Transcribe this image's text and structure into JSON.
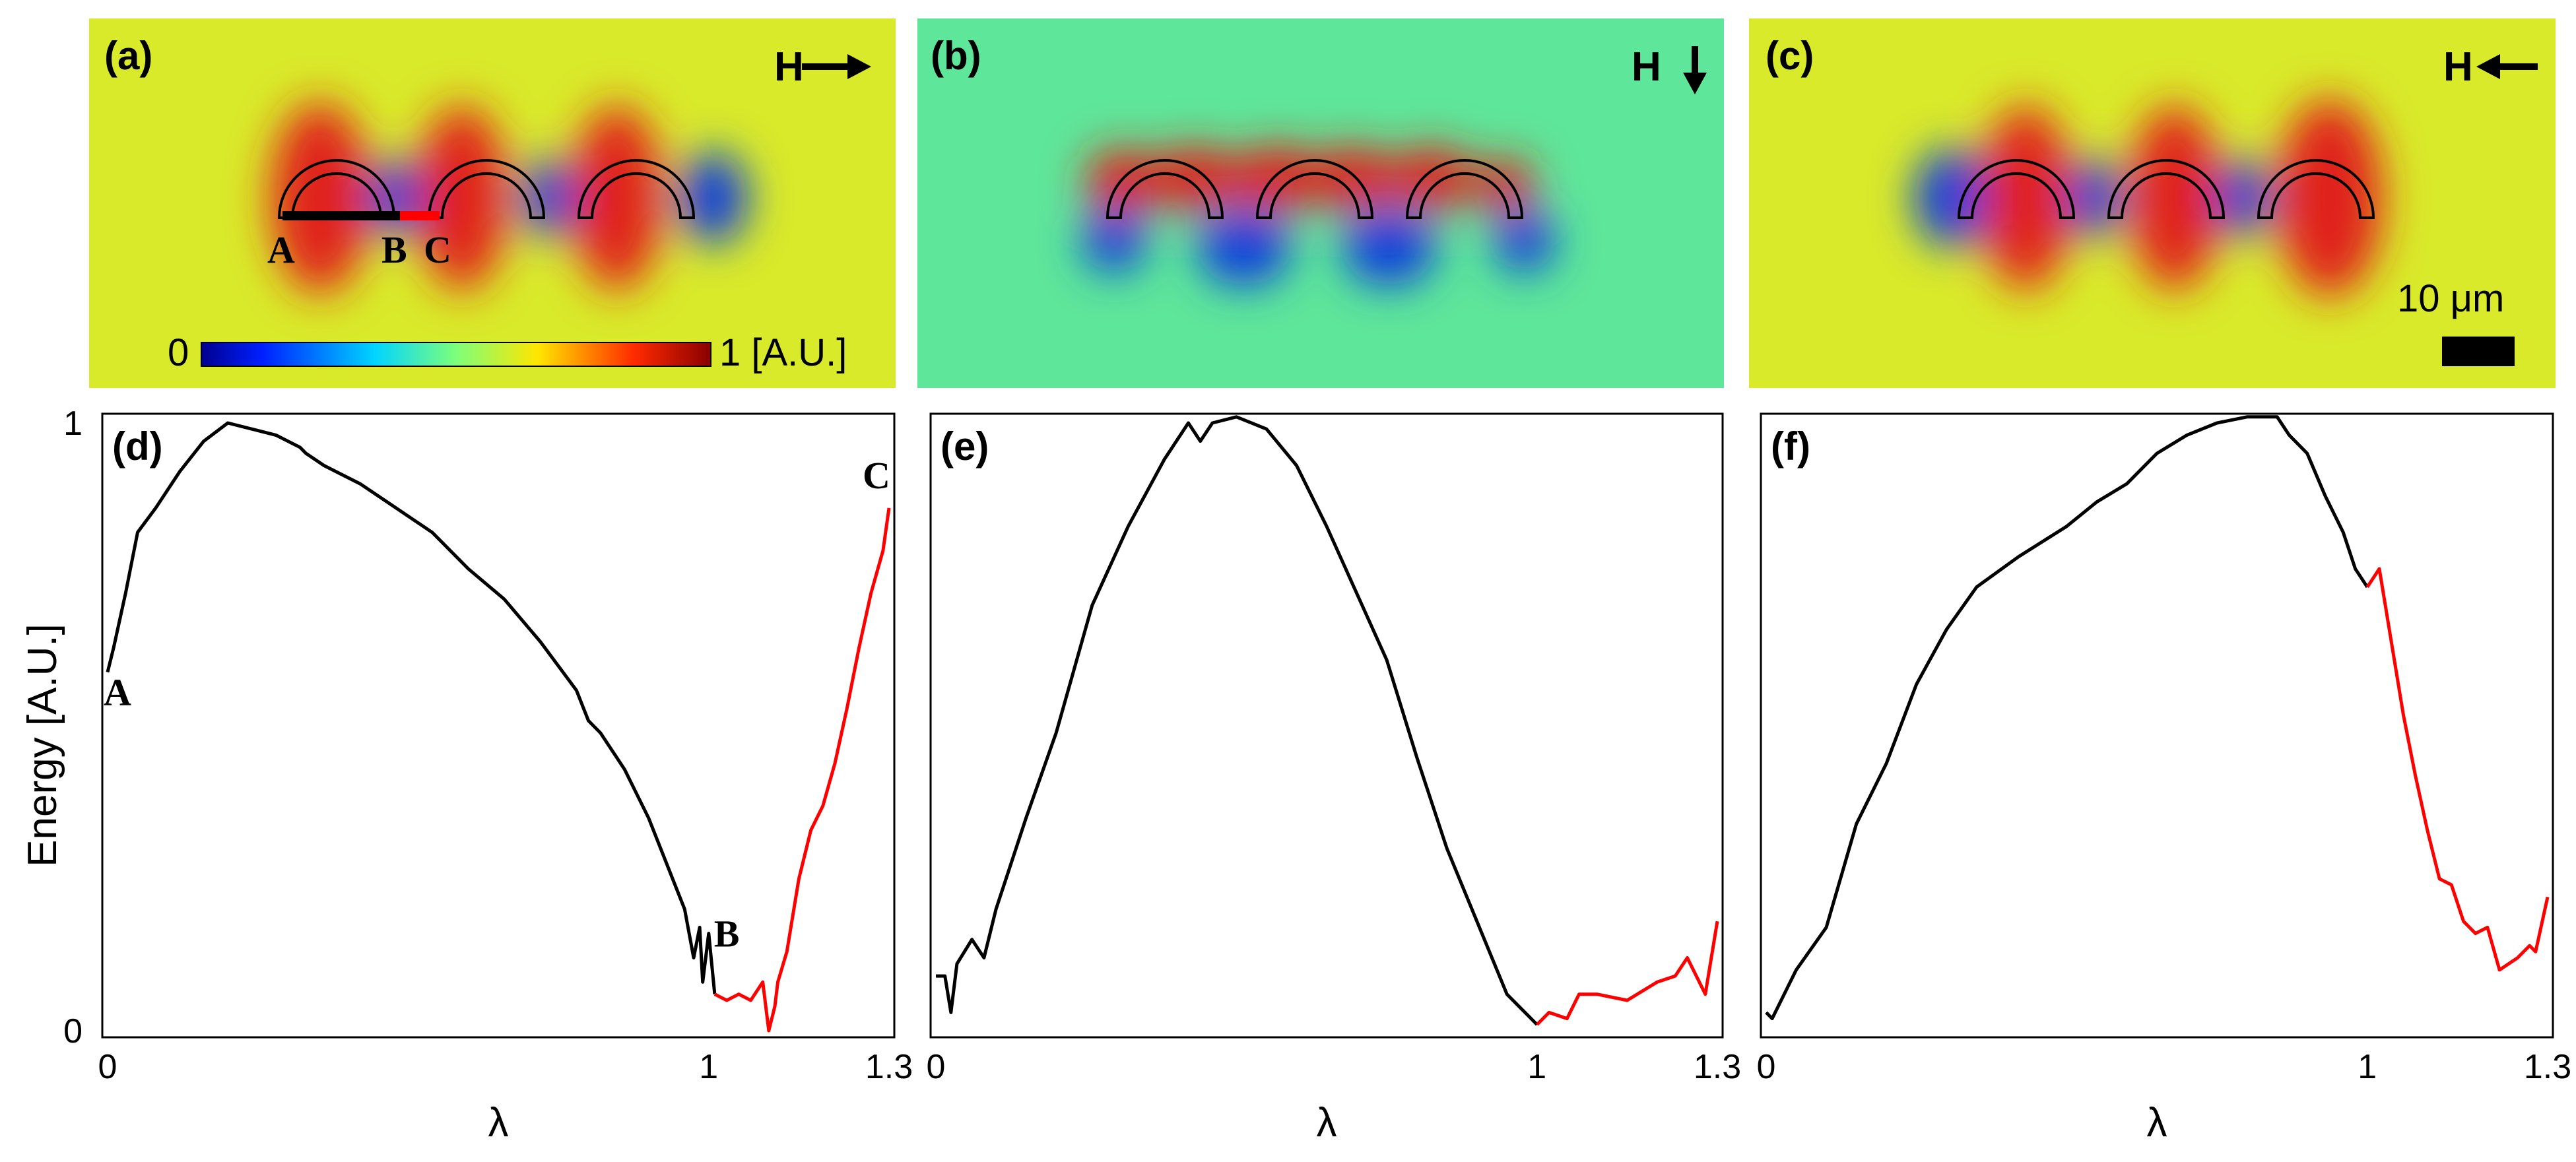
{
  "colors": {
    "black_segment": "#000000",
    "red_segment": "#ff0000",
    "field_bg_a": "#d9ea2a",
    "field_bg_b": "#5ee69a",
    "field_bg_c": "#d9ea2a",
    "hot": "#e0201a",
    "cold": "#0a3cdc"
  },
  "field_panels": [
    {
      "label": "(a)",
      "field_symbol": "H",
      "direction": "right",
      "arrow_icon": "arrow-right-icon"
    },
    {
      "label": "(b)",
      "field_symbol": "H",
      "direction": "down",
      "arrow_icon": "arrow-down-icon"
    },
    {
      "label": "(c)",
      "field_symbol": "H",
      "direction": "left",
      "arrow_icon": "arrow-left-icon"
    }
  ],
  "colorbar": {
    "min_label": "0",
    "max_label": "1 [A.U.]"
  },
  "path_labels": {
    "a": "A",
    "b": "B",
    "c": "C"
  },
  "scale_bar": {
    "label": "10 μm"
  },
  "chart_data": [
    {
      "panel": "(d)",
      "type": "line",
      "xlabel": "λ",
      "ylabel": "Energy [A.U.]",
      "xlim": [
        0,
        1.3
      ],
      "ylim": [
        0,
        1
      ],
      "xticks": [
        "0",
        "1",
        "1.3"
      ],
      "yticks": [
        "0",
        "1"
      ],
      "annotations": [
        "A",
        "B",
        "C"
      ],
      "series": [
        {
          "name": "A-B",
          "color": "black",
          "x": [
            0,
            0.01,
            0.03,
            0.05,
            0.08,
            0.12,
            0.16,
            0.2,
            0.24,
            0.28,
            0.32,
            0.33,
            0.36,
            0.42,
            0.48,
            0.54,
            0.6,
            0.66,
            0.72,
            0.78,
            0.8,
            0.82,
            0.86,
            0.9,
            0.92,
            0.94,
            0.96,
            0.975,
            0.985,
            0.99,
            1.0,
            1.01
          ],
          "y": [
            0.59,
            0.63,
            0.72,
            0.82,
            0.86,
            0.92,
            0.97,
            1.0,
            0.99,
            0.98,
            0.96,
            0.95,
            0.93,
            0.9,
            0.86,
            0.82,
            0.76,
            0.71,
            0.64,
            0.56,
            0.51,
            0.49,
            0.43,
            0.35,
            0.3,
            0.25,
            0.2,
            0.12,
            0.17,
            0.08,
            0.16,
            0.06
          ]
        },
        {
          "name": "B-C",
          "color": "red",
          "x": [
            1.01,
            1.03,
            1.05,
            1.07,
            1.09,
            1.1,
            1.11,
            1.115,
            1.13,
            1.15,
            1.17,
            1.19,
            1.21,
            1.23,
            1.25,
            1.27,
            1.29,
            1.3
          ],
          "y": [
            0.06,
            0.05,
            0.06,
            0.05,
            0.08,
            0.0,
            0.04,
            0.08,
            0.13,
            0.25,
            0.33,
            0.37,
            0.44,
            0.53,
            0.63,
            0.72,
            0.79,
            0.86
          ]
        }
      ]
    },
    {
      "panel": "(e)",
      "type": "line",
      "xlabel": "λ",
      "ylabel": "",
      "xlim": [
        0,
        1.3
      ],
      "ylim": [
        0,
        1
      ],
      "xticks": [
        "0",
        "1",
        "1.3"
      ],
      "yticks": [],
      "annotations": [],
      "series": [
        {
          "name": "black",
          "color": "black",
          "x": [
            0,
            0.015,
            0.025,
            0.035,
            0.06,
            0.08,
            0.1,
            0.15,
            0.2,
            0.26,
            0.32,
            0.38,
            0.42,
            0.44,
            0.46,
            0.5,
            0.55,
            0.6,
            0.65,
            0.7,
            0.75,
            0.8,
            0.85,
            0.9,
            0.95,
            0.98,
            1.0
          ],
          "y": [
            0.09,
            0.09,
            0.03,
            0.11,
            0.15,
            0.12,
            0.2,
            0.35,
            0.49,
            0.7,
            0.83,
            0.94,
            1.0,
            0.97,
            1.0,
            1.01,
            0.99,
            0.93,
            0.83,
            0.72,
            0.61,
            0.45,
            0.3,
            0.18,
            0.06,
            0.03,
            0.01
          ]
        },
        {
          "name": "red",
          "color": "red",
          "x": [
            1.0,
            1.02,
            1.05,
            1.07,
            1.1,
            1.15,
            1.2,
            1.23,
            1.25,
            1.28,
            1.3
          ],
          "y": [
            0.01,
            0.03,
            0.02,
            0.06,
            0.06,
            0.05,
            0.08,
            0.09,
            0.12,
            0.06,
            0.18
          ]
        }
      ]
    },
    {
      "panel": "(f)",
      "type": "line",
      "xlabel": "λ",
      "ylabel": "",
      "xlim": [
        0,
        1.3
      ],
      "ylim": [
        0,
        1
      ],
      "xticks": [
        "0",
        "1",
        "1.3"
      ],
      "yticks": [],
      "annotations": [],
      "series": [
        {
          "name": "black",
          "color": "black",
          "x": [
            0,
            0.01,
            0.05,
            0.1,
            0.15,
            0.2,
            0.25,
            0.3,
            0.35,
            0.42,
            0.5,
            0.55,
            0.6,
            0.65,
            0.7,
            0.75,
            0.8,
            0.85,
            0.87,
            0.9,
            0.93,
            0.96,
            0.98,
            1.0
          ],
          "y": [
            0.03,
            0.02,
            0.1,
            0.17,
            0.34,
            0.44,
            0.57,
            0.66,
            0.73,
            0.78,
            0.83,
            0.87,
            0.9,
            0.95,
            0.98,
            1.0,
            1.01,
            1.01,
            0.98,
            0.95,
            0.88,
            0.82,
            0.76,
            0.73
          ]
        },
        {
          "name": "red",
          "color": "red",
          "x": [
            1.0,
            1.02,
            1.04,
            1.06,
            1.08,
            1.1,
            1.12,
            1.14,
            1.16,
            1.18,
            1.2,
            1.22,
            1.25,
            1.27,
            1.28,
            1.3
          ],
          "y": [
            0.73,
            0.76,
            0.64,
            0.52,
            0.42,
            0.33,
            0.25,
            0.24,
            0.18,
            0.16,
            0.17,
            0.1,
            0.12,
            0.14,
            0.13,
            0.22
          ]
        }
      ]
    }
  ]
}
